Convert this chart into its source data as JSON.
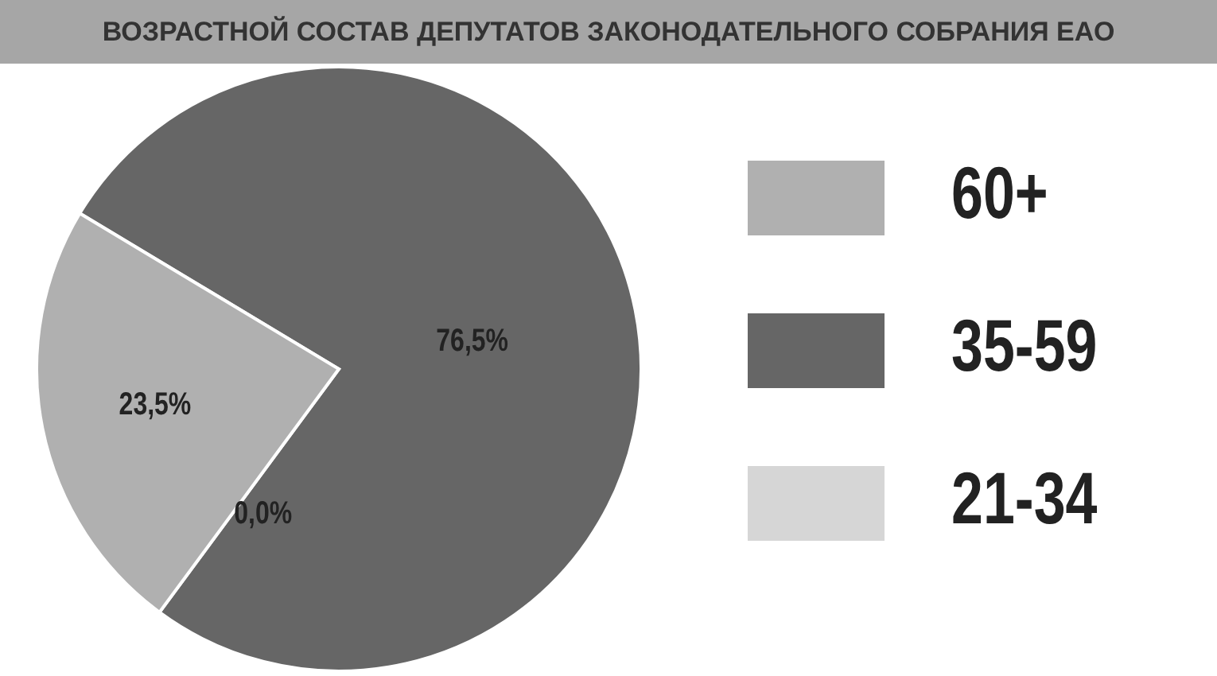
{
  "chart_data": {
    "type": "pie",
    "title": "ВОЗРАСТНОЙ СОСТАВ ДЕПУТАТОВ ЗАКОНОДАТЕЛЬНОГО СОБРАНИЯ ЕАО",
    "categories": [
      "60+",
      "35-59",
      "21-34"
    ],
    "values": [
      23.5,
      76.5,
      0.0
    ],
    "colors": [
      "#b0b0b0",
      "#666666",
      "#d6d6d6"
    ],
    "value_labels": [
      "23,5%",
      "76,5%",
      "0,0%"
    ],
    "legend": "right"
  }
}
